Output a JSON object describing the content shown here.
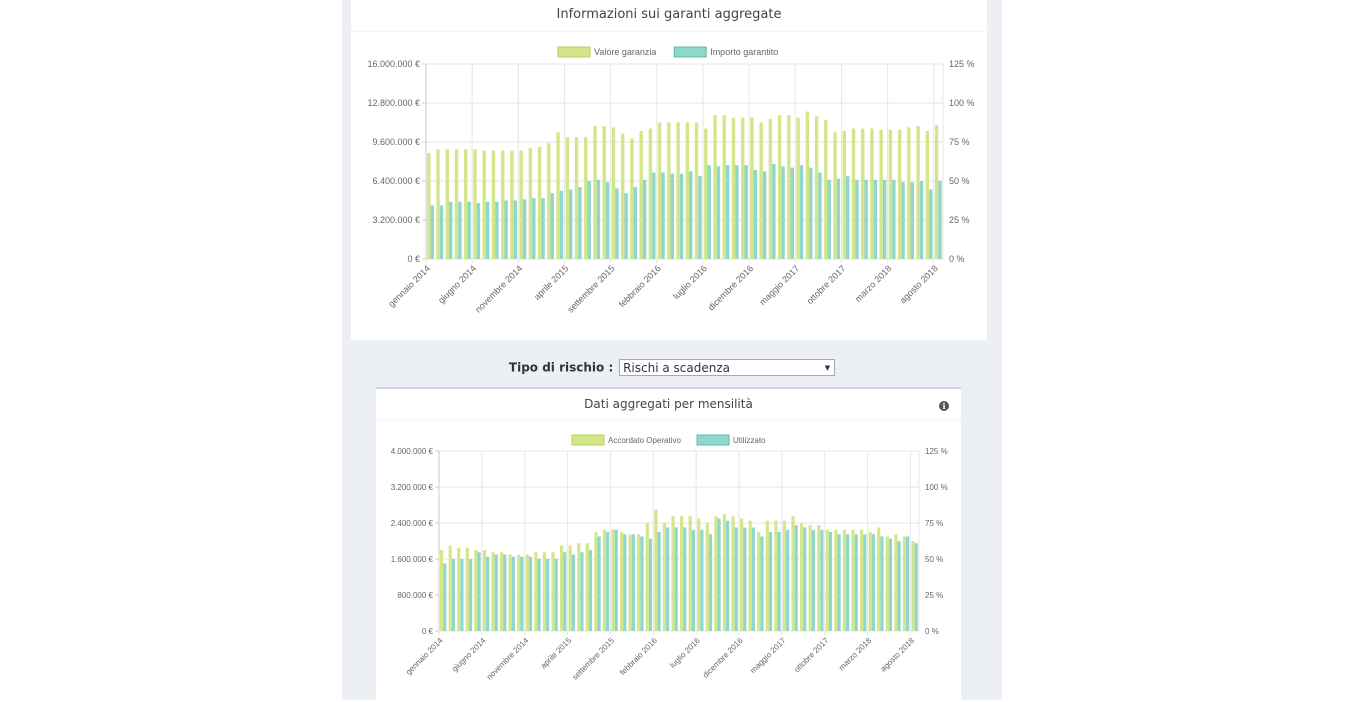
{
  "filter": {
    "label": "Tipo di rischio :",
    "selected": "Rischi a scadenza"
  },
  "chart1": {
    "title": "Informazioni sui garanti aggregate"
  },
  "chart2": {
    "title": "Dati aggregati per mensilità",
    "info_icon": "info-circle-icon"
  },
  "colors": {
    "series_a": "#d4e68a",
    "series_b": "#8fd6cb",
    "grid": "#e6e6e6"
  },
  "chart_data": [
    {
      "type": "bar",
      "title": "Informazioni sui garanti aggregate",
      "legend_position": "top",
      "grid": true,
      "x": [
        "gennaio 2014",
        "febbraio 2014",
        "marzo 2014",
        "aprile 2014",
        "maggio 2014",
        "giugno 2014",
        "luglio 2014",
        "agosto 2014",
        "settembre 2014",
        "ottobre 2014",
        "novembre 2014",
        "dicembre 2014",
        "gennaio 2015",
        "febbraio 2015",
        "marzo 2015",
        "aprile 2015",
        "maggio 2015",
        "giugno 2015",
        "luglio 2015",
        "agosto 2015",
        "settembre 2015",
        "ottobre 2015",
        "novembre 2015",
        "dicembre 2015",
        "gennaio 2016",
        "febbraio 2016",
        "marzo 2016",
        "aprile 2016",
        "maggio 2016",
        "giugno 2016",
        "luglio 2016",
        "agosto 2016",
        "settembre 2016",
        "ottobre 2016",
        "novembre 2016",
        "dicembre 2016",
        "gennaio 2017",
        "febbraio 2017",
        "marzo 2017",
        "aprile 2017",
        "maggio 2017",
        "giugno 2017",
        "luglio 2017",
        "agosto 2017",
        "settembre 2017",
        "ottobre 2017",
        "novembre 2017",
        "dicembre 2017",
        "gennaio 2018",
        "febbraio 2018",
        "marzo 2018",
        "aprile 2018",
        "maggio 2018",
        "giugno 2018",
        "luglio 2018",
        "agosto 2018"
      ],
      "x_tick_labels": [
        "gennaio 2014",
        "giugno 2014",
        "novembre 2014",
        "aprile 2015",
        "settembre 2015",
        "febbraio 2016",
        "luglio 2016",
        "dicembre 2016",
        "maggio 2017",
        "ottobre 2017",
        "marzo 2018",
        "agosto 2018"
      ],
      "y_left": {
        "ticks": [
          "0 €",
          "3.200.000 €",
          "6.400.000 €",
          "9.600.000 €",
          "12.800.000 €",
          "16.000.000 €"
        ],
        "range": [
          0,
          16000000
        ]
      },
      "y_right": {
        "ticks": [
          "0 %",
          "25 %",
          "50 %",
          "75 %",
          "100 %",
          "125 %"
        ],
        "range": [
          0,
          125
        ]
      },
      "series": [
        {
          "name": "Valore garanzia",
          "values": [
            8700000,
            9000000,
            9000000,
            9000000,
            9000000,
            9000000,
            8900000,
            8900000,
            8900000,
            8900000,
            8900000,
            9100000,
            9200000,
            9500000,
            10400000,
            10000000,
            10000000,
            10000000,
            10900000,
            10900000,
            10800000,
            10300000,
            9900000,
            10500000,
            10700000,
            11200000,
            11200000,
            11200000,
            11200000,
            11200000,
            10700000,
            11800000,
            11800000,
            11600000,
            11600000,
            11600000,
            11200000,
            11500000,
            11800000,
            11800000,
            11600000,
            12100000,
            11700000,
            11400000,
            10400000,
            10500000,
            10700000,
            10700000,
            10700000,
            10600000,
            10600000,
            10600000,
            10800000,
            10900000,
            10500000,
            11000000
          ]
        },
        {
          "name": "Importo garantito",
          "values": [
            4400000,
            4400000,
            4700000,
            4700000,
            4700000,
            4600000,
            4700000,
            4700000,
            4800000,
            4800000,
            4900000,
            5000000,
            5000000,
            5400000,
            5600000,
            5700000,
            5900000,
            6400000,
            6500000,
            6300000,
            5800000,
            5400000,
            5900000,
            6500000,
            7100000,
            7100000,
            7000000,
            7000000,
            7200000,
            6800000,
            7700000,
            7600000,
            7700000,
            7700000,
            7700000,
            7300000,
            7200000,
            7800000,
            7600000,
            7500000,
            7700000,
            7500000,
            7100000,
            6500000,
            6600000,
            6800000,
            6500000,
            6500000,
            6500000,
            6500000,
            6500000,
            6300000,
            6300000,
            6400000,
            5700000,
            6400000
          ]
        }
      ]
    },
    {
      "type": "bar",
      "title": "Dati aggregati per mensilità",
      "legend_position": "top",
      "grid": true,
      "x": [
        "gennaio 2014",
        "febbraio 2014",
        "marzo 2014",
        "aprile 2014",
        "maggio 2014",
        "giugno 2014",
        "luglio 2014",
        "agosto 2014",
        "settembre 2014",
        "ottobre 2014",
        "novembre 2014",
        "dicembre 2014",
        "gennaio 2015",
        "febbraio 2015",
        "marzo 2015",
        "aprile 2015",
        "maggio 2015",
        "giugno 2015",
        "luglio 2015",
        "agosto 2015",
        "settembre 2015",
        "ottobre 2015",
        "novembre 2015",
        "dicembre 2015",
        "gennaio 2016",
        "febbraio 2016",
        "marzo 2016",
        "aprile 2016",
        "maggio 2016",
        "giugno 2016",
        "luglio 2016",
        "agosto 2016",
        "settembre 2016",
        "ottobre 2016",
        "novembre 2016",
        "dicembre 2016",
        "gennaio 2017",
        "febbraio 2017",
        "marzo 2017",
        "aprile 2017",
        "maggio 2017",
        "giugno 2017",
        "luglio 2017",
        "agosto 2017",
        "settembre 2017",
        "ottobre 2017",
        "novembre 2017",
        "dicembre 2017",
        "gennaio 2018",
        "febbraio 2018",
        "marzo 2018",
        "aprile 2018",
        "maggio 2018",
        "giugno 2018",
        "luglio 2018",
        "agosto 2018"
      ],
      "x_tick_labels": [
        "gennaio 2014",
        "giugno 2014",
        "novembre 2014",
        "aprile 2015",
        "settembre 2015",
        "febbraio 2016",
        "luglio 2016",
        "dicembre 2016",
        "maggio 2017",
        "ottobre 2017",
        "marzo 2018",
        "agosto 2018"
      ],
      "y_left": {
        "ticks": [
          "0 €",
          "800.000 €",
          "1.600.000 €",
          "2.400.000 €",
          "3.200.000 €",
          "4.000.000 €"
        ],
        "range": [
          0,
          4000000
        ]
      },
      "y_right": {
        "ticks": [
          "0 %",
          "25 %",
          "50 %",
          "75 %",
          "100 %",
          "125 %"
        ],
        "range": [
          0,
          125
        ]
      },
      "series": [
        {
          "name": "Accordato Operativo",
          "values": [
            1800000,
            1900000,
            1850000,
            1850000,
            1800000,
            1800000,
            1750000,
            1750000,
            1700000,
            1700000,
            1700000,
            1750000,
            1750000,
            1750000,
            1900000,
            1900000,
            1950000,
            1950000,
            2200000,
            2250000,
            2250000,
            2200000,
            2150000,
            2150000,
            2400000,
            2700000,
            2400000,
            2550000,
            2550000,
            2550000,
            2500000,
            2400000,
            2550000,
            2600000,
            2550000,
            2500000,
            2450000,
            2200000,
            2450000,
            2450000,
            2450000,
            2550000,
            2400000,
            2350000,
            2350000,
            2250000,
            2250000,
            2250000,
            2250000,
            2250000,
            2200000,
            2300000,
            2100000,
            2150000,
            2100000,
            2000000
          ]
        },
        {
          "name": "Utilizzato",
          "values": [
            1500000,
            1600000,
            1600000,
            1600000,
            1750000,
            1650000,
            1700000,
            1700000,
            1650000,
            1650000,
            1650000,
            1600000,
            1600000,
            1600000,
            1750000,
            1700000,
            1750000,
            1800000,
            2100000,
            2200000,
            2250000,
            2150000,
            2150000,
            2100000,
            2050000,
            2200000,
            2300000,
            2300000,
            2300000,
            2250000,
            2250000,
            2150000,
            2500000,
            2450000,
            2300000,
            2300000,
            2300000,
            2100000,
            2200000,
            2200000,
            2250000,
            2350000,
            2300000,
            2250000,
            2250000,
            2200000,
            2150000,
            2150000,
            2150000,
            2150000,
            2150000,
            2100000,
            2050000,
            2000000,
            2100000,
            1950000
          ]
        }
      ]
    }
  ]
}
